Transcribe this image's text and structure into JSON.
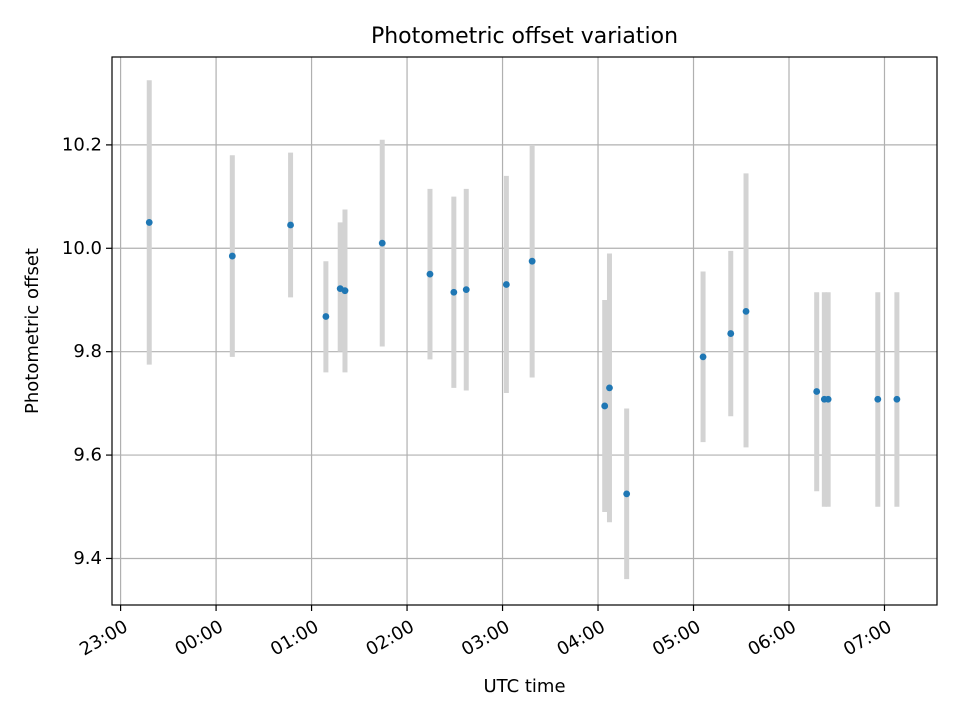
{
  "chart_data": {
    "type": "scatter",
    "title": "Photometric offset variation",
    "xlabel": "UTC time",
    "ylabel": "Photometric offset",
    "grid": true,
    "x_unit": "hours since 23:00 UTC",
    "xlim": [
      -0.09,
      8.55
    ],
    "ylim": [
      9.31,
      10.37
    ],
    "x_ticks": [
      {
        "value": 0,
        "label": "23:00"
      },
      {
        "value": 1,
        "label": "00:00"
      },
      {
        "value": 2,
        "label": "01:00"
      },
      {
        "value": 3,
        "label": "02:00"
      },
      {
        "value": 4,
        "label": "03:00"
      },
      {
        "value": 5,
        "label": "04:00"
      },
      {
        "value": 6,
        "label": "05:00"
      },
      {
        "value": 7,
        "label": "06:00"
      },
      {
        "value": 8,
        "label": "07:00"
      }
    ],
    "y_ticks": [
      {
        "value": 9.4,
        "label": "9.4"
      },
      {
        "value": 9.6,
        "label": "9.6"
      },
      {
        "value": 9.8,
        "label": "9.8"
      },
      {
        "value": 10.0,
        "label": "10.0"
      },
      {
        "value": 10.2,
        "label": "10.2"
      }
    ],
    "point_color": "#1f77b4",
    "error_color": "#d3d3d3",
    "points": [
      {
        "x": 0.3,
        "y": 10.05,
        "low": 9.775,
        "high": 10.325
      },
      {
        "x": 1.17,
        "y": 9.985,
        "low": 9.79,
        "high": 10.18
      },
      {
        "x": 1.78,
        "y": 10.045,
        "low": 9.905,
        "high": 10.185
      },
      {
        "x": 2.15,
        "y": 9.868,
        "low": 9.76,
        "high": 9.975
      },
      {
        "x": 2.3,
        "y": 9.922,
        "low": 9.8,
        "high": 10.05
      },
      {
        "x": 2.35,
        "y": 9.918,
        "low": 9.76,
        "high": 10.075
      },
      {
        "x": 2.74,
        "y": 10.01,
        "low": 9.81,
        "high": 10.21
      },
      {
        "x": 3.24,
        "y": 9.95,
        "low": 9.785,
        "high": 10.115
      },
      {
        "x": 3.49,
        "y": 9.915,
        "low": 9.73,
        "high": 10.1
      },
      {
        "x": 3.62,
        "y": 9.92,
        "low": 9.725,
        "high": 10.115
      },
      {
        "x": 4.04,
        "y": 9.93,
        "low": 9.72,
        "high": 10.14
      },
      {
        "x": 4.31,
        "y": 9.975,
        "low": 9.75,
        "high": 10.2
      },
      {
        "x": 5.07,
        "y": 9.695,
        "low": 9.49,
        "high": 9.9
      },
      {
        "x": 5.12,
        "y": 9.73,
        "low": 9.47,
        "high": 9.99
      },
      {
        "x": 5.3,
        "y": 9.525,
        "low": 9.36,
        "high": 9.69
      },
      {
        "x": 6.1,
        "y": 9.79,
        "low": 9.625,
        "high": 9.955
      },
      {
        "x": 6.39,
        "y": 9.835,
        "low": 9.675,
        "high": 9.995
      },
      {
        "x": 6.55,
        "y": 9.878,
        "low": 9.615,
        "high": 10.145
      },
      {
        "x": 7.29,
        "y": 9.723,
        "low": 9.53,
        "high": 9.915
      },
      {
        "x": 7.37,
        "y": 9.708,
        "low": 9.5,
        "high": 9.915
      },
      {
        "x": 7.41,
        "y": 9.708,
        "low": 9.5,
        "high": 9.915
      },
      {
        "x": 7.93,
        "y": 9.708,
        "low": 9.5,
        "high": 9.915
      },
      {
        "x": 8.13,
        "y": 9.708,
        "low": 9.5,
        "high": 9.915
      }
    ]
  }
}
